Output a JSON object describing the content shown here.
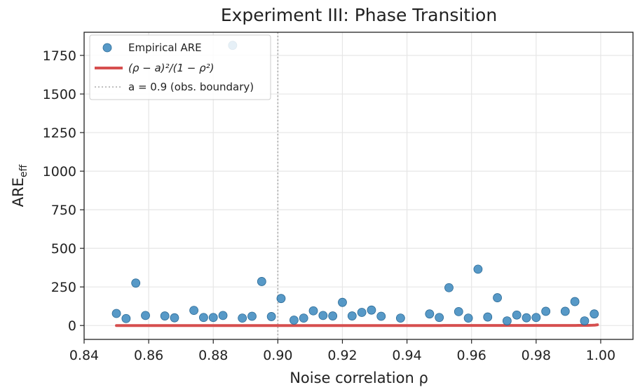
{
  "chart_data": {
    "type": "scatter",
    "title": "Experiment III: Phase Transition",
    "xlabel": "Noise correlation ρ",
    "ylabel": "ARE",
    "ylabel_sub": "eff",
    "xlim": [
      0.84,
      1.01
    ],
    "ylim": [
      -90,
      1900
    ],
    "xticks": [
      0.84,
      0.86,
      0.88,
      0.9,
      0.92,
      0.94,
      0.96,
      0.98,
      1.0
    ],
    "xtick_labels": [
      "0.84",
      "0.86",
      "0.88",
      "0.90",
      "0.92",
      "0.94",
      "0.96",
      "0.98",
      "1.00"
    ],
    "yticks": [
      0,
      250,
      500,
      750,
      1000,
      1250,
      1500,
      1750
    ],
    "ytick_labels": [
      "0",
      "250",
      "500",
      "750",
      "1000",
      "1250",
      "1500",
      "1750"
    ],
    "grid": true,
    "legend_position": "top-left",
    "series": [
      {
        "name": "Empirical ARE",
        "kind": "scatter",
        "color": "#3a87bd",
        "points": [
          [
            0.85,
            78
          ],
          [
            0.853,
            45
          ],
          [
            0.856,
            275
          ],
          [
            0.859,
            65
          ],
          [
            0.865,
            62
          ],
          [
            0.868,
            50
          ],
          [
            0.874,
            98
          ],
          [
            0.877,
            52
          ],
          [
            0.88,
            52
          ],
          [
            0.883,
            65
          ],
          [
            0.886,
            1815
          ],
          [
            0.889,
            48
          ],
          [
            0.892,
            60
          ],
          [
            0.895,
            285
          ],
          [
            0.898,
            58
          ],
          [
            0.901,
            175
          ],
          [
            0.905,
            35
          ],
          [
            0.908,
            48
          ],
          [
            0.911,
            95
          ],
          [
            0.914,
            65
          ],
          [
            0.917,
            62
          ],
          [
            0.92,
            150
          ],
          [
            0.923,
            62
          ],
          [
            0.926,
            85
          ],
          [
            0.929,
            100
          ],
          [
            0.932,
            60
          ],
          [
            0.938,
            48
          ],
          [
            0.947,
            75
          ],
          [
            0.95,
            52
          ],
          [
            0.953,
            245
          ],
          [
            0.956,
            90
          ],
          [
            0.959,
            48
          ],
          [
            0.962,
            365
          ],
          [
            0.965,
            55
          ],
          [
            0.968,
            180
          ],
          [
            0.971,
            30
          ],
          [
            0.974,
            68
          ],
          [
            0.977,
            50
          ],
          [
            0.98,
            52
          ],
          [
            0.983,
            92
          ],
          [
            0.989,
            92
          ],
          [
            0.992,
            155
          ],
          [
            0.995,
            30
          ],
          [
            0.998,
            75
          ]
        ]
      },
      {
        "name": "(ρ − a)²/(1 − ρ²)",
        "kind": "line",
        "color": "#d64f4f",
        "a": 0.9,
        "x_range": [
          0.85,
          0.999
        ]
      },
      {
        "name": "a = 0.9 (obs. boundary)",
        "kind": "vline",
        "color": "#aaaaaa",
        "x": 0.9
      }
    ]
  }
}
